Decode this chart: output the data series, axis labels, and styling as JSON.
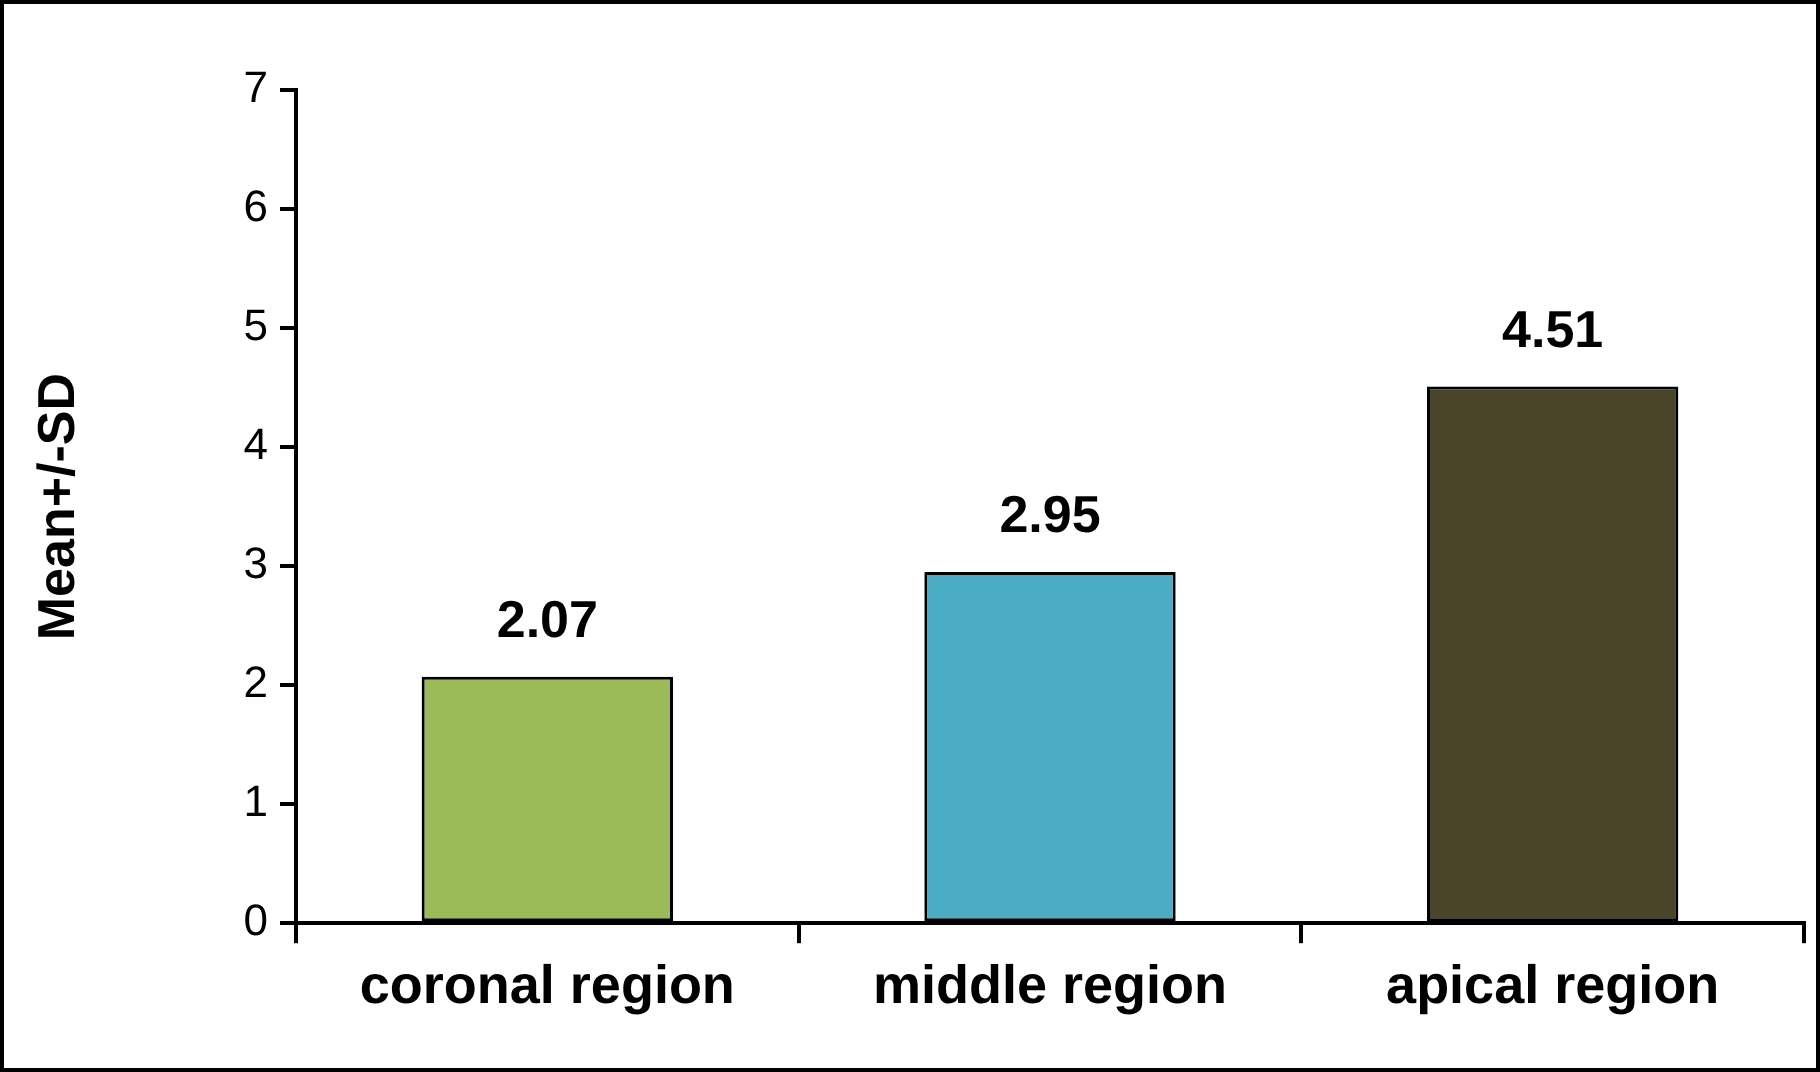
{
  "chart_data": {
    "type": "bar",
    "ylabel": "Mean+/-SD",
    "categories": [
      "coronal region",
      "middle region",
      "apical region"
    ],
    "values": [
      2.07,
      2.95,
      4.51
    ],
    "colors": [
      "#9bbb59",
      "#4bacc6",
      "#4a452a"
    ],
    "ylim": [
      0,
      7
    ],
    "yticks": [
      0,
      1,
      2,
      3,
      4,
      5,
      6,
      7
    ],
    "grid": false,
    "legend": false,
    "data_labels": true
  }
}
